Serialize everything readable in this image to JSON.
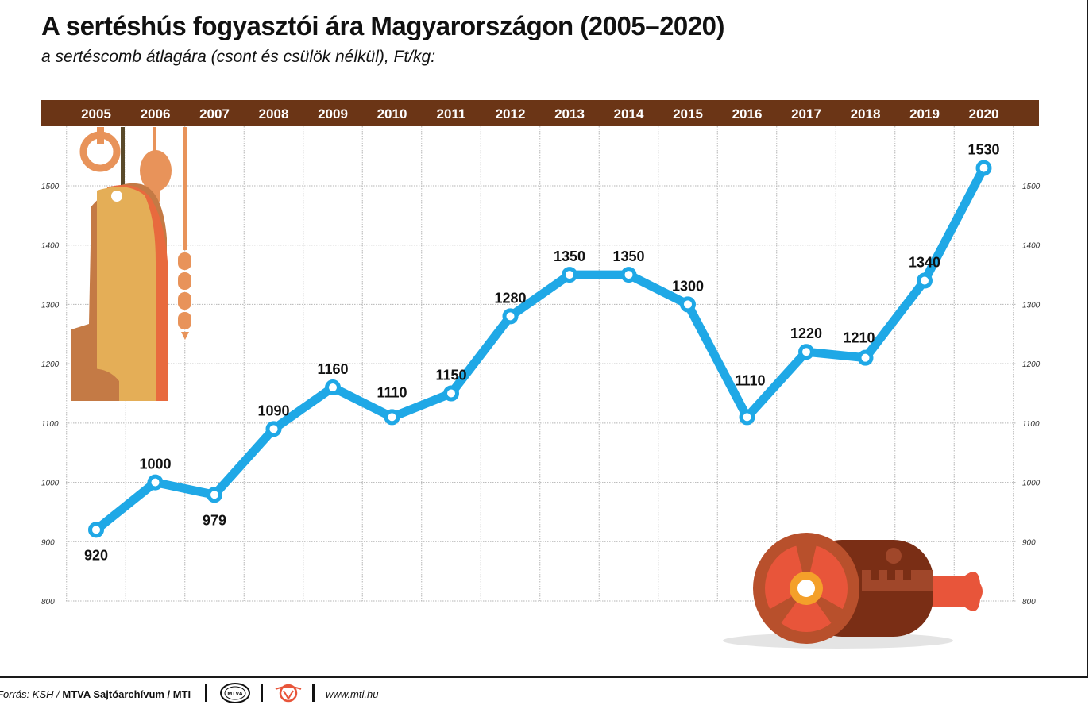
{
  "header": {
    "title": "A sertéshús fogyasztói ára Magyarországon (2005–2020)",
    "subtitle": "a sertéscomb átlagára (csont és csülök nélkül), Ft/kg:"
  },
  "footer": {
    "source_prefix": "Forrás: KSH / ",
    "source_bold": "MTVA Sajtóarchívum / MTI",
    "logo_text": "MTVA",
    "url": "www.mti.hu"
  },
  "colors": {
    "header_band": "#6b3516",
    "line": "#1fa8e6",
    "marker_fill": "#ffffff"
  },
  "chart_data": {
    "type": "line",
    "categories": [
      "2005",
      "2006",
      "2007",
      "2008",
      "2009",
      "2010",
      "2011",
      "2012",
      "2013",
      "2014",
      "2015",
      "2016",
      "2017",
      "2018",
      "2019",
      "2020"
    ],
    "series": [
      {
        "values": [
          920,
          1000,
          979,
          1090,
          1160,
          1110,
          1150,
          1280,
          1350,
          1350,
          1300,
          1110,
          1220,
          1210,
          1340,
          1530
        ]
      }
    ],
    "ylim": [
      800,
      1500
    ],
    "yticks": [
      800,
      900,
      1000,
      1100,
      1200,
      1300,
      1400,
      1500
    ],
    "grid": true,
    "xaxis_position": "top",
    "yaxis": "both"
  }
}
